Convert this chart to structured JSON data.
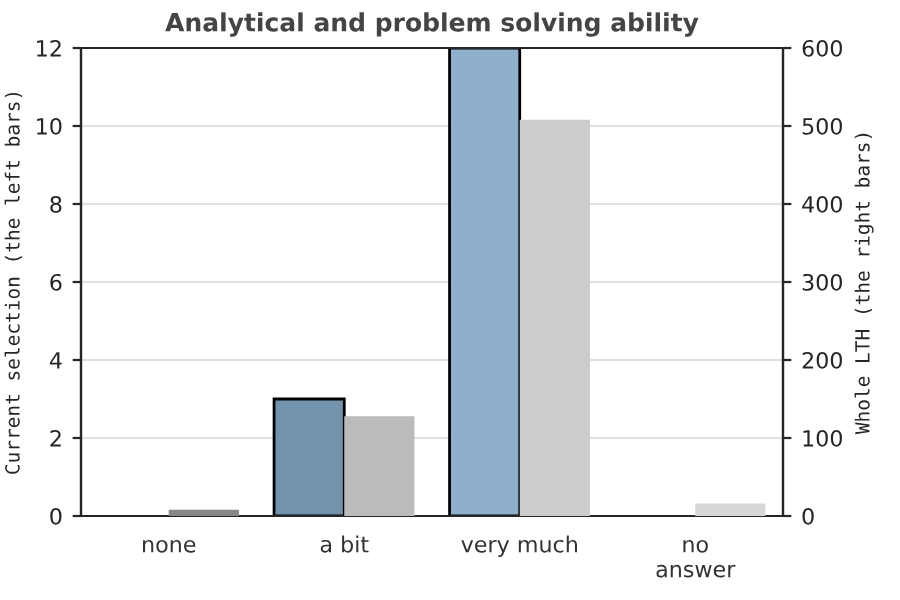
{
  "chart_data": {
    "type": "bar",
    "title": "Analytical and problem solving ability",
    "categories": [
      "none",
      "a bit",
      "very much",
      "no\nanswer"
    ],
    "ylabel": "Current selection (the left bars)",
    "y2label": "Whole LTH (the right bars)",
    "ylim": [
      0,
      12
    ],
    "yticks": [
      0,
      2,
      4,
      6,
      8,
      10,
      12
    ],
    "y2lim": [
      0,
      600
    ],
    "y2ticks": [
      0,
      100,
      200,
      300,
      400,
      500,
      600
    ],
    "grid": "y",
    "series": [
      {
        "colors": [
          "#7393ad",
          "#7393ad",
          "#8fb0cc",
          "#8fb0cc"
        ],
        "values": [
          0,
          3,
          12,
          0
        ]
      },
      {
        "axis": "y2",
        "colors": [
          "#888888",
          "#bbbbbb",
          "#cccccc",
          "#d8d8d8"
        ],
        "values": [
          8,
          128,
          508,
          16
        ]
      }
    ]
  }
}
